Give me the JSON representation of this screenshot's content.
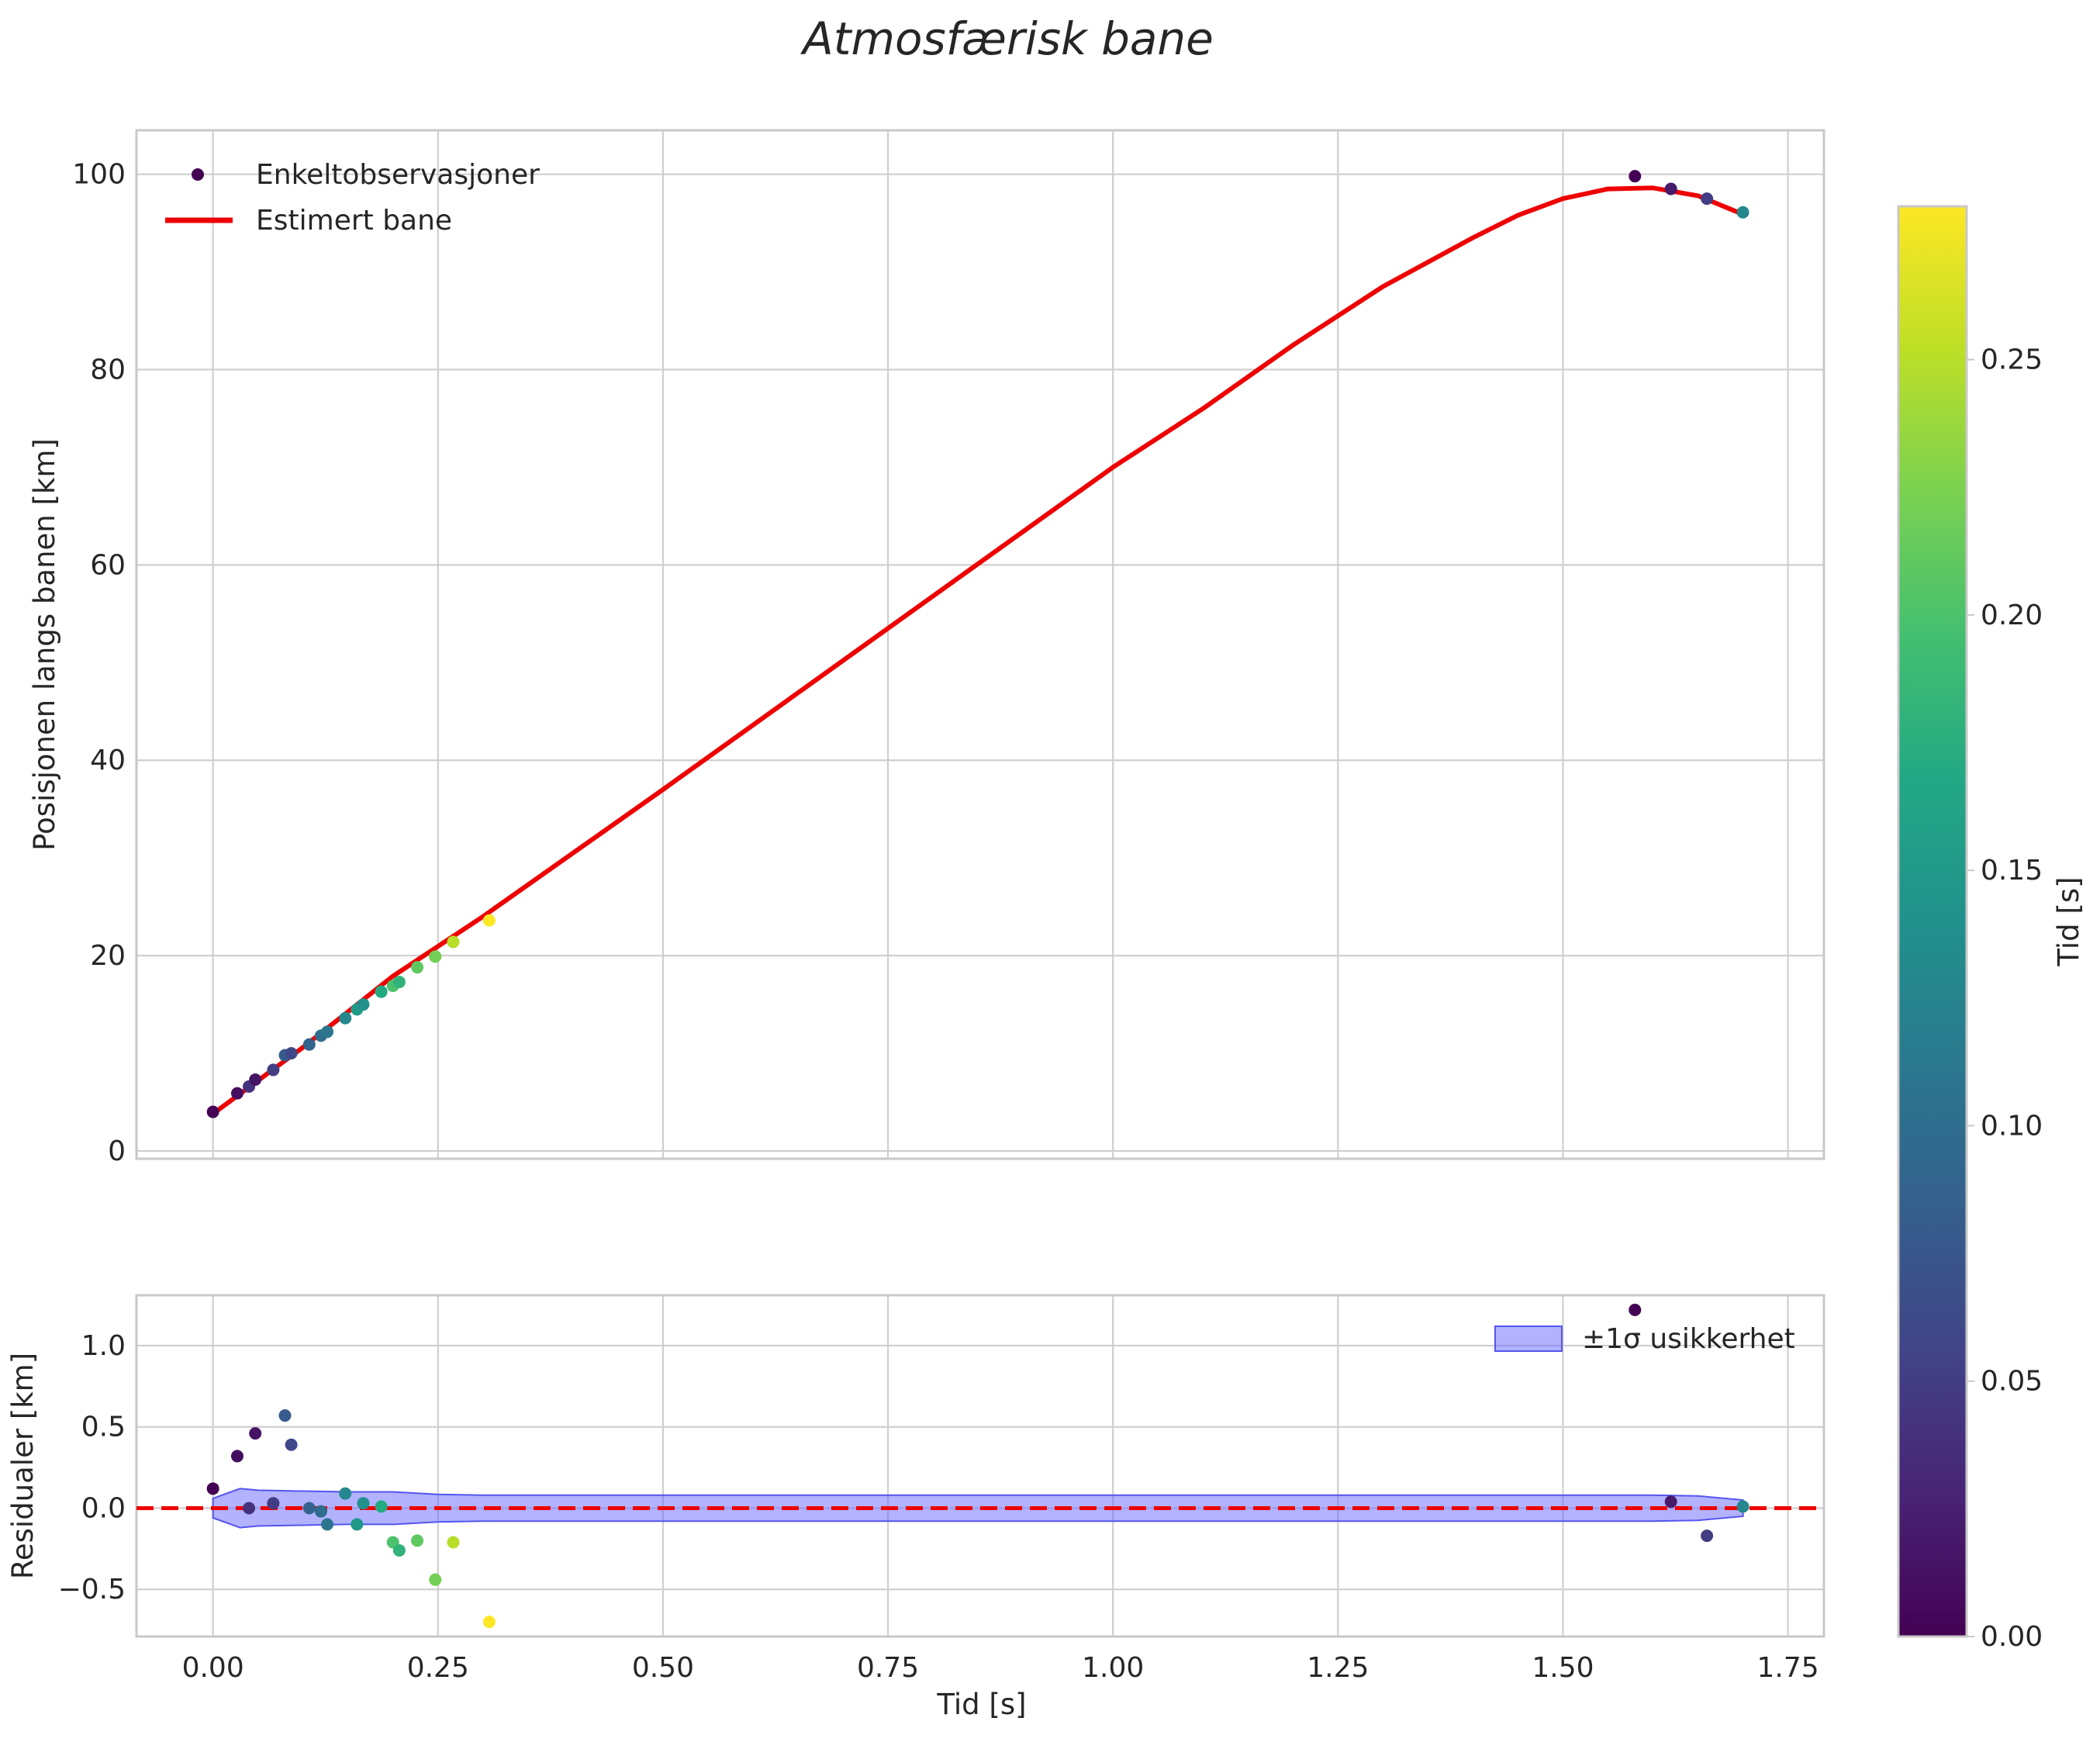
{
  "chart_data": [
    {
      "type": "scatter",
      "title": "Atmosfærisk bane",
      "xlabel": "",
      "ylabel": "Posisjonen langs banen [km]",
      "xlim": [
        -0.085,
        1.79
      ],
      "ylim": [
        -0.8,
        104.5
      ],
      "xticks": [
        0.0,
        0.25,
        0.5,
        0.75,
        1.0,
        1.25,
        1.5,
        1.75
      ],
      "yticks": [
        0,
        20,
        40,
        60,
        80,
        100
      ],
      "ytick_labels": [
        "0",
        "20",
        "40",
        "60",
        "80",
        "100"
      ],
      "grid": true,
      "legend": {
        "position": "top-left",
        "entries": [
          "Enkeltobservasjoner",
          "Estimert bane"
        ]
      },
      "series": [
        {
          "name": "Enkeltobservasjoner",
          "kind": "scatter",
          "color_by": "c",
          "points": [
            {
              "x": 0.0,
              "y": 4.0,
              "c": 0.0
            },
            {
              "x": 0.027,
              "y": 5.9,
              "c": 0.01
            },
            {
              "x": 0.04,
              "y": 6.6,
              "c": 0.04
            },
            {
              "x": 0.047,
              "y": 7.3,
              "c": 0.015
            },
            {
              "x": 0.067,
              "y": 8.3,
              "c": 0.05
            },
            {
              "x": 0.08,
              "y": 9.8,
              "c": 0.08
            },
            {
              "x": 0.087,
              "y": 10.0,
              "c": 0.06
            },
            {
              "x": 0.107,
              "y": 10.9,
              "c": 0.09
            },
            {
              "x": 0.12,
              "y": 11.8,
              "c": 0.1
            },
            {
              "x": 0.127,
              "y": 12.2,
              "c": 0.11
            },
            {
              "x": 0.147,
              "y": 13.6,
              "c": 0.13
            },
            {
              "x": 0.16,
              "y": 14.5,
              "c": 0.15
            },
            {
              "x": 0.167,
              "y": 15.0,
              "c": 0.14
            },
            {
              "x": 0.187,
              "y": 16.3,
              "c": 0.17
            },
            {
              "x": 0.2,
              "y": 16.9,
              "c": 0.2
            },
            {
              "x": 0.207,
              "y": 17.3,
              "c": 0.18
            },
            {
              "x": 0.227,
              "y": 18.8,
              "c": 0.21
            },
            {
              "x": 0.247,
              "y": 19.9,
              "c": 0.22
            },
            {
              "x": 0.267,
              "y": 21.4,
              "c": 0.25
            },
            {
              "x": 0.307,
              "y": 23.6,
              "c": 0.28
            },
            {
              "x": 1.58,
              "y": 99.8,
              "c": 0.0
            },
            {
              "x": 1.62,
              "y": 98.5,
              "c": 0.02
            },
            {
              "x": 1.66,
              "y": 97.5,
              "c": 0.05
            },
            {
              "x": 1.7,
              "y": 96.1,
              "c": 0.13
            }
          ]
        },
        {
          "name": "Estimert bane",
          "kind": "line",
          "color": "#ee0000",
          "x": [
            0.0,
            0.1,
            0.2,
            0.3,
            0.5,
            0.75,
            1.0,
            1.1,
            1.2,
            1.3,
            1.4,
            1.45,
            1.5,
            1.55,
            1.6,
            1.65,
            1.7
          ],
          "y": [
            3.8,
            10.6,
            17.9,
            24.0,
            37.0,
            53.5,
            70.0,
            76.0,
            82.5,
            88.5,
            93.5,
            95.8,
            97.5,
            98.5,
            98.6,
            97.8,
            95.9
          ]
        }
      ]
    },
    {
      "type": "scatter",
      "title": "",
      "xlabel": "Tid [s]",
      "ylabel": "Residualer [km]",
      "xlim": [
        -0.085,
        1.79
      ],
      "ylim": [
        -0.79,
        1.31
      ],
      "xticks": [
        0.0,
        0.25,
        0.5,
        0.75,
        1.0,
        1.25,
        1.5,
        1.75
      ],
      "xtick_labels": [
        "0.00",
        "0.25",
        "0.50",
        "0.75",
        "1.00",
        "1.25",
        "1.50",
        "1.75"
      ],
      "yticks": [
        -0.5,
        0.0,
        0.5,
        1.0
      ],
      "ytick_labels": [
        "−0.5",
        "0.0",
        "0.5",
        "1.0"
      ],
      "grid": true,
      "reference_line": {
        "y": 0.0,
        "style": "dashed",
        "color": "#ee0000"
      },
      "legend": {
        "position": "top-right",
        "entries": [
          "±1σ usikkerhet"
        ]
      },
      "band": {
        "name": "±1σ usikkerhet",
        "color": "#6666ff",
        "x": [
          0.0,
          0.03,
          0.05,
          0.1,
          0.15,
          0.2,
          0.25,
          0.3,
          1.6,
          1.65,
          1.7
        ],
        "half_width": [
          0.06,
          0.12,
          0.11,
          0.105,
          0.1,
          0.1,
          0.085,
          0.08,
          0.08,
          0.075,
          0.05
        ]
      },
      "points": [
        {
          "x": 0.0,
          "y": 0.12,
          "c": 0.0
        },
        {
          "x": 0.027,
          "y": 0.32,
          "c": 0.01
        },
        {
          "x": 0.04,
          "y": 0.0,
          "c": 0.04
        },
        {
          "x": 0.047,
          "y": 0.46,
          "c": 0.015
        },
        {
          "x": 0.067,
          "y": 0.03,
          "c": 0.05
        },
        {
          "x": 0.08,
          "y": 0.57,
          "c": 0.08
        },
        {
          "x": 0.087,
          "y": 0.39,
          "c": 0.06
        },
        {
          "x": 0.107,
          "y": 0.0,
          "c": 0.09
        },
        {
          "x": 0.12,
          "y": -0.02,
          "c": 0.1
        },
        {
          "x": 0.127,
          "y": -0.1,
          "c": 0.11
        },
        {
          "x": 0.147,
          "y": 0.09,
          "c": 0.13
        },
        {
          "x": 0.16,
          "y": -0.1,
          "c": 0.15
        },
        {
          "x": 0.167,
          "y": 0.03,
          "c": 0.14
        },
        {
          "x": 0.187,
          "y": 0.01,
          "c": 0.17
        },
        {
          "x": 0.2,
          "y": -0.21,
          "c": 0.2
        },
        {
          "x": 0.207,
          "y": -0.26,
          "c": 0.18
        },
        {
          "x": 0.227,
          "y": -0.2,
          "c": 0.21
        },
        {
          "x": 0.247,
          "y": -0.44,
          "c": 0.22
        },
        {
          "x": 0.267,
          "y": -0.21,
          "c": 0.25
        },
        {
          "x": 0.307,
          "y": -0.7,
          "c": 0.28
        },
        {
          "x": 1.58,
          "y": 1.22,
          "c": 0.0
        },
        {
          "x": 1.62,
          "y": 0.04,
          "c": 0.02
        },
        {
          "x": 1.66,
          "y": -0.17,
          "c": 0.05
        },
        {
          "x": 1.7,
          "y": 0.01,
          "c": 0.13
        }
      ]
    }
  ],
  "colorbar": {
    "label": "Tid [s]",
    "colormap": "viridis",
    "range": [
      0.0,
      0.28
    ],
    "ticks": [
      0.0,
      0.05,
      0.1,
      0.15,
      0.2,
      0.25
    ],
    "tick_labels": [
      "0.00",
      "0.05",
      "0.10",
      "0.15",
      "0.20",
      "0.25"
    ]
  }
}
